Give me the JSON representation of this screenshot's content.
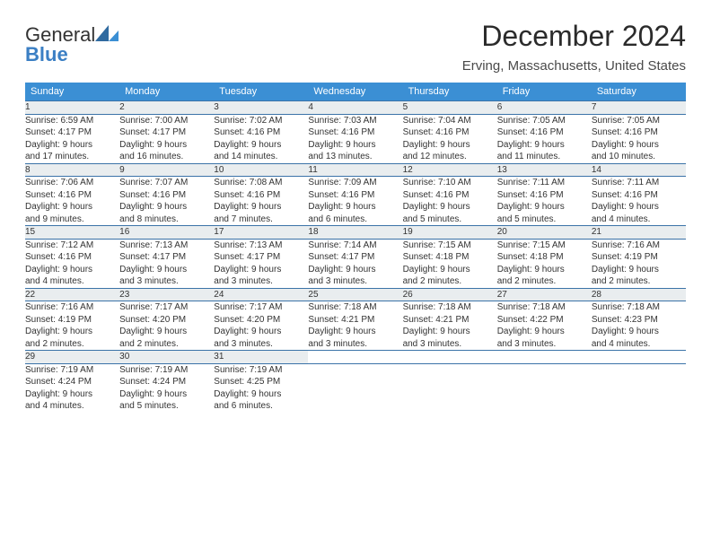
{
  "logo": {
    "word1": "General",
    "word2": "Blue"
  },
  "title": "December 2024",
  "subtitle": "Erving, Massachusetts, United States",
  "colors": {
    "header_bg": "#3b8fd4",
    "header_text": "#ffffff",
    "daynum_bg": "#e9edef",
    "rule": "#2f6aa0",
    "logo_blue": "#3b7fc4",
    "text": "#333333",
    "page_bg": "#ffffff"
  },
  "typography": {
    "title_fontsize": 32,
    "subtitle_fontsize": 15,
    "weekday_fontsize": 11,
    "daynum_fontsize": 11,
    "cell_fontsize": 10
  },
  "layout": {
    "columns": 7,
    "rows": 5,
    "col_width_pct": 14.28
  },
  "weekdays": [
    "Sunday",
    "Monday",
    "Tuesday",
    "Wednesday",
    "Thursday",
    "Friday",
    "Saturday"
  ],
  "days": [
    {
      "n": "1",
      "sr": "Sunrise: 6:59 AM",
      "ss": "Sunset: 4:17 PM",
      "d1": "Daylight: 9 hours",
      "d2": "and 17 minutes."
    },
    {
      "n": "2",
      "sr": "Sunrise: 7:00 AM",
      "ss": "Sunset: 4:17 PM",
      "d1": "Daylight: 9 hours",
      "d2": "and 16 minutes."
    },
    {
      "n": "3",
      "sr": "Sunrise: 7:02 AM",
      "ss": "Sunset: 4:16 PM",
      "d1": "Daylight: 9 hours",
      "d2": "and 14 minutes."
    },
    {
      "n": "4",
      "sr": "Sunrise: 7:03 AM",
      "ss": "Sunset: 4:16 PM",
      "d1": "Daylight: 9 hours",
      "d2": "and 13 minutes."
    },
    {
      "n": "5",
      "sr": "Sunrise: 7:04 AM",
      "ss": "Sunset: 4:16 PM",
      "d1": "Daylight: 9 hours",
      "d2": "and 12 minutes."
    },
    {
      "n": "6",
      "sr": "Sunrise: 7:05 AM",
      "ss": "Sunset: 4:16 PM",
      "d1": "Daylight: 9 hours",
      "d2": "and 11 minutes."
    },
    {
      "n": "7",
      "sr": "Sunrise: 7:05 AM",
      "ss": "Sunset: 4:16 PM",
      "d1": "Daylight: 9 hours",
      "d2": "and 10 minutes."
    },
    {
      "n": "8",
      "sr": "Sunrise: 7:06 AM",
      "ss": "Sunset: 4:16 PM",
      "d1": "Daylight: 9 hours",
      "d2": "and 9 minutes."
    },
    {
      "n": "9",
      "sr": "Sunrise: 7:07 AM",
      "ss": "Sunset: 4:16 PM",
      "d1": "Daylight: 9 hours",
      "d2": "and 8 minutes."
    },
    {
      "n": "10",
      "sr": "Sunrise: 7:08 AM",
      "ss": "Sunset: 4:16 PM",
      "d1": "Daylight: 9 hours",
      "d2": "and 7 minutes."
    },
    {
      "n": "11",
      "sr": "Sunrise: 7:09 AM",
      "ss": "Sunset: 4:16 PM",
      "d1": "Daylight: 9 hours",
      "d2": "and 6 minutes."
    },
    {
      "n": "12",
      "sr": "Sunrise: 7:10 AM",
      "ss": "Sunset: 4:16 PM",
      "d1": "Daylight: 9 hours",
      "d2": "and 5 minutes."
    },
    {
      "n": "13",
      "sr": "Sunrise: 7:11 AM",
      "ss": "Sunset: 4:16 PM",
      "d1": "Daylight: 9 hours",
      "d2": "and 5 minutes."
    },
    {
      "n": "14",
      "sr": "Sunrise: 7:11 AM",
      "ss": "Sunset: 4:16 PM",
      "d1": "Daylight: 9 hours",
      "d2": "and 4 minutes."
    },
    {
      "n": "15",
      "sr": "Sunrise: 7:12 AM",
      "ss": "Sunset: 4:16 PM",
      "d1": "Daylight: 9 hours",
      "d2": "and 4 minutes."
    },
    {
      "n": "16",
      "sr": "Sunrise: 7:13 AM",
      "ss": "Sunset: 4:17 PM",
      "d1": "Daylight: 9 hours",
      "d2": "and 3 minutes."
    },
    {
      "n": "17",
      "sr": "Sunrise: 7:13 AM",
      "ss": "Sunset: 4:17 PM",
      "d1": "Daylight: 9 hours",
      "d2": "and 3 minutes."
    },
    {
      "n": "18",
      "sr": "Sunrise: 7:14 AM",
      "ss": "Sunset: 4:17 PM",
      "d1": "Daylight: 9 hours",
      "d2": "and 3 minutes."
    },
    {
      "n": "19",
      "sr": "Sunrise: 7:15 AM",
      "ss": "Sunset: 4:18 PM",
      "d1": "Daylight: 9 hours",
      "d2": "and 2 minutes."
    },
    {
      "n": "20",
      "sr": "Sunrise: 7:15 AM",
      "ss": "Sunset: 4:18 PM",
      "d1": "Daylight: 9 hours",
      "d2": "and 2 minutes."
    },
    {
      "n": "21",
      "sr": "Sunrise: 7:16 AM",
      "ss": "Sunset: 4:19 PM",
      "d1": "Daylight: 9 hours",
      "d2": "and 2 minutes."
    },
    {
      "n": "22",
      "sr": "Sunrise: 7:16 AM",
      "ss": "Sunset: 4:19 PM",
      "d1": "Daylight: 9 hours",
      "d2": "and 2 minutes."
    },
    {
      "n": "23",
      "sr": "Sunrise: 7:17 AM",
      "ss": "Sunset: 4:20 PM",
      "d1": "Daylight: 9 hours",
      "d2": "and 2 minutes."
    },
    {
      "n": "24",
      "sr": "Sunrise: 7:17 AM",
      "ss": "Sunset: 4:20 PM",
      "d1": "Daylight: 9 hours",
      "d2": "and 3 minutes."
    },
    {
      "n": "25",
      "sr": "Sunrise: 7:18 AM",
      "ss": "Sunset: 4:21 PM",
      "d1": "Daylight: 9 hours",
      "d2": "and 3 minutes."
    },
    {
      "n": "26",
      "sr": "Sunrise: 7:18 AM",
      "ss": "Sunset: 4:21 PM",
      "d1": "Daylight: 9 hours",
      "d2": "and 3 minutes."
    },
    {
      "n": "27",
      "sr": "Sunrise: 7:18 AM",
      "ss": "Sunset: 4:22 PM",
      "d1": "Daylight: 9 hours",
      "d2": "and 3 minutes."
    },
    {
      "n": "28",
      "sr": "Sunrise: 7:18 AM",
      "ss": "Sunset: 4:23 PM",
      "d1": "Daylight: 9 hours",
      "d2": "and 4 minutes."
    },
    {
      "n": "29",
      "sr": "Sunrise: 7:19 AM",
      "ss": "Sunset: 4:24 PM",
      "d1": "Daylight: 9 hours",
      "d2": "and 4 minutes."
    },
    {
      "n": "30",
      "sr": "Sunrise: 7:19 AM",
      "ss": "Sunset: 4:24 PM",
      "d1": "Daylight: 9 hours",
      "d2": "and 5 minutes."
    },
    {
      "n": "31",
      "sr": "Sunrise: 7:19 AM",
      "ss": "Sunset: 4:25 PM",
      "d1": "Daylight: 9 hours",
      "d2": "and 6 minutes."
    }
  ]
}
